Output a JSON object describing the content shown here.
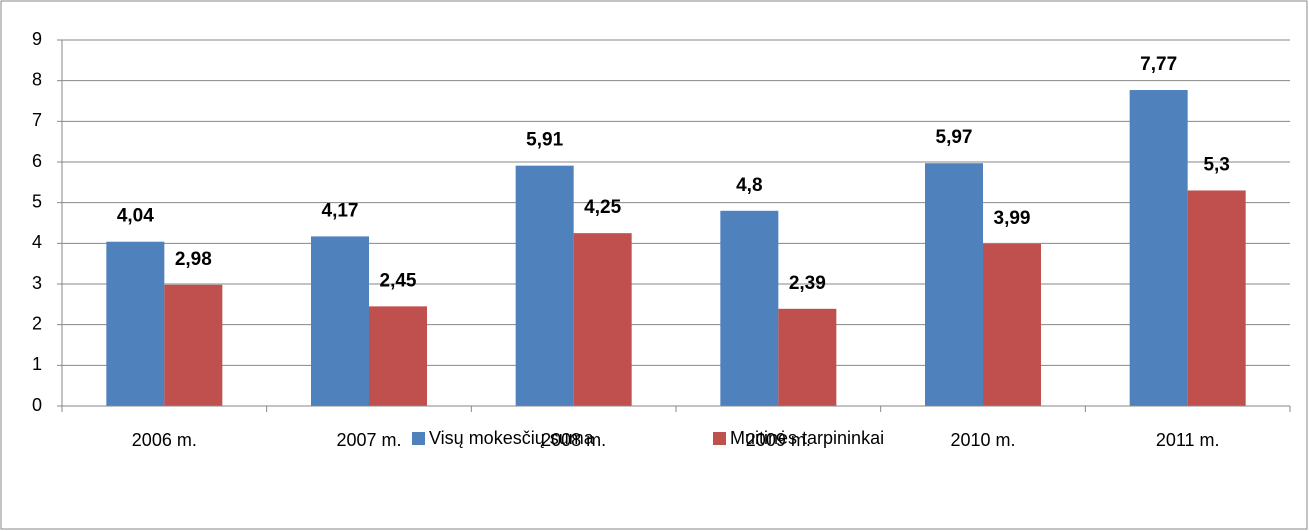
{
  "chart_data": {
    "type": "bar",
    "categories": [
      "2006 m.",
      "2007 m.",
      "2008 m.",
      "2009 m.",
      "2010 m.",
      "2011 m."
    ],
    "series": [
      {
        "name": "Visų mokesčių suma",
        "color": "#4f81bd",
        "values": [
          4.04,
          4.17,
          5.91,
          4.8,
          5.97,
          7.77
        ],
        "value_labels": [
          "4,04",
          "4,17",
          "5,91",
          "4,8",
          "5,97",
          "7,77"
        ]
      },
      {
        "name": "Muitinės tarpininkai",
        "color": "#c0504d",
        "values": [
          2.98,
          2.45,
          4.25,
          2.39,
          3.99,
          5.3
        ],
        "value_labels": [
          "2,98",
          "2,45",
          "4,25",
          "2,39",
          "3,99",
          "5,3"
        ]
      }
    ],
    "ylim": [
      0,
      9
    ],
    "yticks": [
      0,
      1,
      2,
      3,
      4,
      5,
      6,
      7,
      8,
      9
    ],
    "grid": true,
    "legend": "bottom"
  }
}
